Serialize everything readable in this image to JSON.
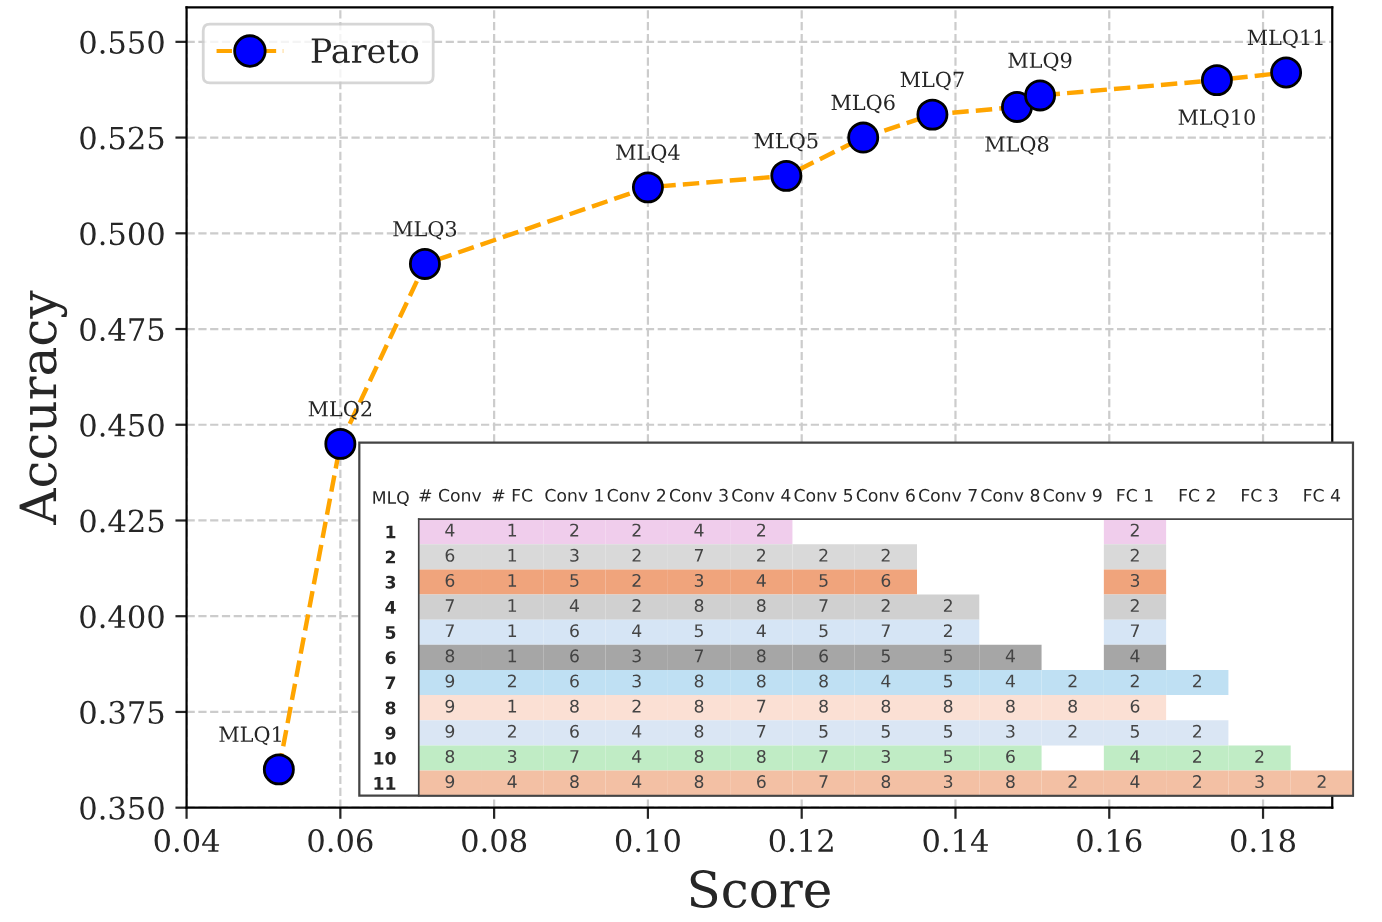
{
  "chart_data": [
    {
      "type": "line",
      "xlabel": "Score",
      "ylabel": "Accuracy",
      "x": [
        0.052,
        0.06,
        0.071,
        0.1,
        0.118,
        0.128,
        0.137,
        0.148,
        0.151,
        0.174,
        0.183
      ],
      "series": [
        {
          "name": "Pareto",
          "color": "#ffa500",
          "colors": [
            "#0000ff",
            "#0000ff",
            "#0000ff",
            "#0000ff",
            "#0000ff",
            "#0000ff",
            "#0000ff",
            "#0000ff",
            "#0000ff",
            "#0000ff",
            "#0000ff"
          ],
          "values": [
            0.36,
            0.445,
            0.492,
            0.512,
            0.515,
            0.525,
            0.531,
            0.533,
            0.536,
            0.54,
            0.542
          ]
        }
      ],
      "xlim": [
        0.04,
        0.189
      ],
      "ylim": [
        0.35,
        0.559
      ],
      "xticks": [
        {
          "value": 0.04,
          "label": "0.04"
        },
        {
          "value": 0.06,
          "label": "0.06"
        },
        {
          "value": 0.08,
          "label": "0.08"
        },
        {
          "value": 0.1,
          "label": "0.10"
        },
        {
          "value": 0.12,
          "label": "0.12"
        },
        {
          "value": 0.14,
          "label": "0.14"
        },
        {
          "value": 0.16,
          "label": "0.16"
        },
        {
          "value": 0.18,
          "label": "0.18"
        }
      ],
      "yticks": [
        {
          "value": 0.35,
          "label": "0.350"
        },
        {
          "value": 0.375,
          "label": "0.375"
        },
        {
          "value": 0.4,
          "label": "0.400"
        },
        {
          "value": 0.425,
          "label": "0.425"
        },
        {
          "value": 0.45,
          "label": "0.450"
        },
        {
          "value": 0.475,
          "label": "0.475"
        },
        {
          "value": 0.5,
          "label": "0.500"
        },
        {
          "value": 0.525,
          "label": "0.525"
        },
        {
          "value": 0.55,
          "label": "0.550"
        }
      ],
      "annotations": [
        {
          "text": "MLQ1",
          "x": 0.052,
          "y": 0.36
        },
        {
          "text": "MLQ2",
          "x": 0.06,
          "y": 0.445
        },
        {
          "text": "MLQ3",
          "x": 0.071,
          "y": 0.492
        },
        {
          "text": "MLQ4",
          "x": 0.1,
          "y": 0.512
        },
        {
          "text": "MLQ5",
          "x": 0.118,
          "y": 0.515
        },
        {
          "text": "MLQ6",
          "x": 0.128,
          "y": 0.525
        },
        {
          "text": "MLQ7",
          "x": 0.137,
          "y": 0.531
        },
        {
          "text": "MLQ8",
          "x": 0.148,
          "y": 0.533
        },
        {
          "text": "MLQ9",
          "x": 0.151,
          "y": 0.536
        },
        {
          "text": "MLQ10",
          "x": 0.174,
          "y": 0.54
        },
        {
          "text": "MLQ11",
          "x": 0.183,
          "y": 0.542
        }
      ],
      "grid": true,
      "legend": "top left",
      "marker": "circle",
      "line_style": "dashed"
    },
    {
      "type": "heatmap",
      "ylabel": "MLQ",
      "data_labels": true,
      "categories": [
        "# Conv",
        "# FC",
        "Conv 1",
        "Conv 2",
        "Conv 3",
        "Conv 4",
        "Conv 5",
        "Conv 6",
        "Conv 7",
        "Conv 8",
        "Conv 9",
        "FC 1",
        "FC 2",
        "FC 3",
        "FC 4"
      ],
      "y_categories": [
        "1",
        "2",
        "3",
        "4",
        "5",
        "6",
        "7",
        "8",
        "9",
        "10",
        "11"
      ],
      "cells": [
        [
          4,
          1,
          2,
          2,
          4,
          2,
          null,
          null,
          null,
          null,
          null,
          2,
          null,
          null,
          null
        ],
        [
          6,
          1,
          3,
          2,
          7,
          2,
          2,
          2,
          null,
          null,
          null,
          2,
          null,
          null,
          null
        ],
        [
          6,
          1,
          5,
          2,
          3,
          4,
          5,
          6,
          null,
          null,
          null,
          3,
          null,
          null,
          null
        ],
        [
          7,
          1,
          4,
          2,
          8,
          8,
          7,
          2,
          2,
          null,
          null,
          2,
          null,
          null,
          null
        ],
        [
          7,
          1,
          6,
          4,
          5,
          4,
          5,
          7,
          2,
          null,
          null,
          7,
          null,
          null,
          null
        ],
        [
          8,
          1,
          6,
          3,
          7,
          8,
          6,
          5,
          5,
          4,
          null,
          4,
          null,
          null,
          null
        ],
        [
          9,
          2,
          6,
          3,
          8,
          8,
          8,
          4,
          5,
          4,
          2,
          2,
          2,
          null,
          null
        ],
        [
          9,
          1,
          8,
          2,
          8,
          7,
          8,
          8,
          8,
          8,
          8,
          6,
          null,
          null,
          null
        ],
        [
          9,
          2,
          6,
          4,
          8,
          7,
          5,
          5,
          5,
          3,
          2,
          5,
          2,
          null,
          null
        ],
        [
          8,
          3,
          7,
          4,
          8,
          8,
          7,
          3,
          5,
          6,
          null,
          4,
          2,
          2,
          null
        ],
        [
          9,
          4,
          8,
          4,
          8,
          6,
          7,
          8,
          3,
          8,
          2,
          4,
          2,
          3,
          2
        ]
      ],
      "colors": [
        "#f0cdec",
        "#d9d9d9",
        "#f0a47c",
        "#d0d0d0",
        "#d6e5f5",
        "#a6a6a6",
        "#bfe0f3",
        "#fbe0d4",
        "#dae6f4",
        "#c0ecc5",
        "#f3c0a4"
      ]
    }
  ]
}
